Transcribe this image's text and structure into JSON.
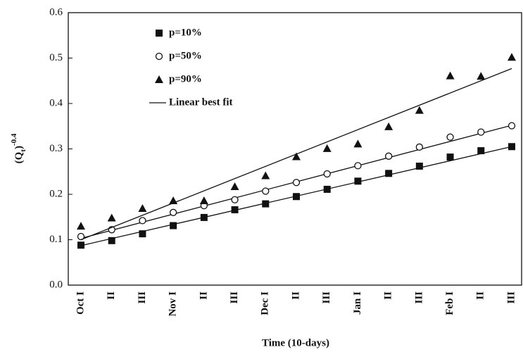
{
  "chart_data": {
    "type": "scatter",
    "x_label": "Time (10-days)",
    "y_label": [
      "(Q",
      "t",
      ")",
      "-0.4"
    ],
    "categories": [
      "Oct I",
      "II",
      "III",
      "Nov I",
      "II",
      "III",
      "Dec I",
      "II",
      "III",
      "Jan I",
      "II",
      "III",
      "Feb I",
      "II",
      "III"
    ],
    "ylim": [
      0,
      0.6
    ],
    "yticks": [
      {
        "value": 0,
        "label": "0.0"
      },
      0.1,
      0.2,
      0.3,
      0.4,
      0.5,
      0.6
    ],
    "fit_label": "Linear best fit",
    "series": [
      {
        "name": "p=10%",
        "color": "#111111",
        "marker": "square",
        "values": [
          0.088,
          0.098,
          0.113,
          0.131,
          0.149,
          0.166,
          0.179,
          0.195,
          0.211,
          0.229,
          0.246,
          0.262,
          0.282,
          0.296,
          0.305
        ],
        "fit": [
          0.087,
          0.305
        ]
      },
      {
        "name": "p=50%",
        "color": "#111111",
        "marker": "circle",
        "values": [
          0.107,
          0.122,
          0.142,
          0.16,
          0.175,
          0.188,
          0.207,
          0.226,
          0.245,
          0.263,
          0.284,
          0.304,
          0.326,
          0.337,
          0.351
        ],
        "fit": [
          0.103,
          0.352
        ]
      },
      {
        "name": "p=90%",
        "color": "#111111",
        "marker": "triangle",
        "values": [
          0.13,
          0.148,
          0.169,
          0.186,
          0.186,
          0.217,
          0.241,
          0.283,
          0.301,
          0.311,
          0.349,
          0.385,
          0.461,
          0.46,
          0.502
        ],
        "fit": [
          0.1,
          0.477
        ]
      }
    ]
  }
}
